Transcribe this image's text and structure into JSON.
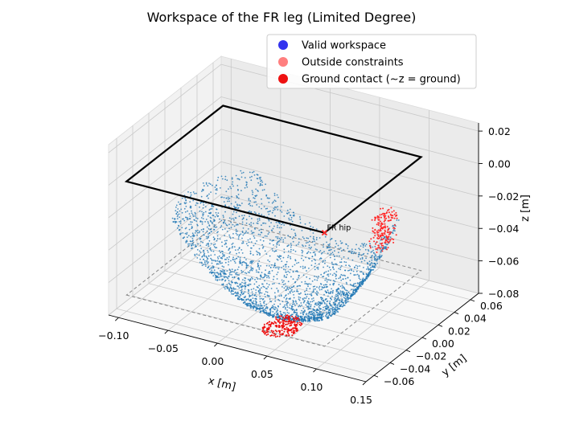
{
  "chart_data": {
    "type": "scatter3d",
    "title": "Workspace of the FR leg (Limited Degree)",
    "xlabel": "x [m]",
    "ylabel": "y [m]",
    "zlabel": "z [m]",
    "xlim": [
      -0.11,
      0.15
    ],
    "ylim": [
      -0.07,
      0.07
    ],
    "zlim": [
      -0.08,
      0.025
    ],
    "xticks": [
      -0.1,
      -0.05,
      0.0,
      0.05,
      0.1,
      0.15
    ],
    "xtick_labels": [
      "−0.10",
      "−0.05",
      "0.00",
      "0.05",
      "0.10",
      "0.15"
    ],
    "yticks": [
      -0.06,
      -0.04,
      -0.02,
      0.0,
      0.02,
      0.04,
      0.06
    ],
    "ytick_labels": [
      "−0.06",
      "−0.04",
      "−0.02",
      "0.00",
      "0.02",
      "0.04",
      "0.06"
    ],
    "zticks": [
      -0.08,
      -0.06,
      -0.04,
      -0.02,
      0.0,
      0.02
    ],
    "ztick_labels": [
      "−0.08",
      "−0.06",
      "−0.04",
      "−0.02",
      "0.00",
      "0.02"
    ],
    "grid": true,
    "legend_position": "top-right",
    "legend": [
      {
        "label": "Valid workspace",
        "color": "#3333ee"
      },
      {
        "label": "Outside constraints",
        "color": "#ff7f7f"
      },
      {
        "label": "Ground contact (~z = ground)",
        "color": "#ee1111"
      }
    ],
    "series_colors": {
      "valid_workspace": "#1f77b4",
      "outside_constraints": "#ff2a2a",
      "ground_contact": "#ee1111",
      "body_outline": "#000000",
      "ground_outline": "#888888"
    },
    "body_outline": {
      "x": [
        -0.1,
        0.1,
        0.1,
        -0.1
      ],
      "y": [
        -0.06,
        -0.06,
        0.06,
        0.06
      ],
      "z": [
        0.0,
        0.0,
        0.0,
        0.0
      ]
    },
    "ground_outline": {
      "x": [
        -0.1,
        0.1,
        0.1,
        -0.1
      ],
      "y": [
        -0.06,
        -0.06,
        0.06,
        0.06
      ],
      "z": [
        -0.07,
        -0.07,
        -0.07,
        -0.07
      ]
    },
    "hip_marker": {
      "label": "FR hip",
      "x": 0.1,
      "y": -0.06,
      "z": 0.0
    }
  }
}
